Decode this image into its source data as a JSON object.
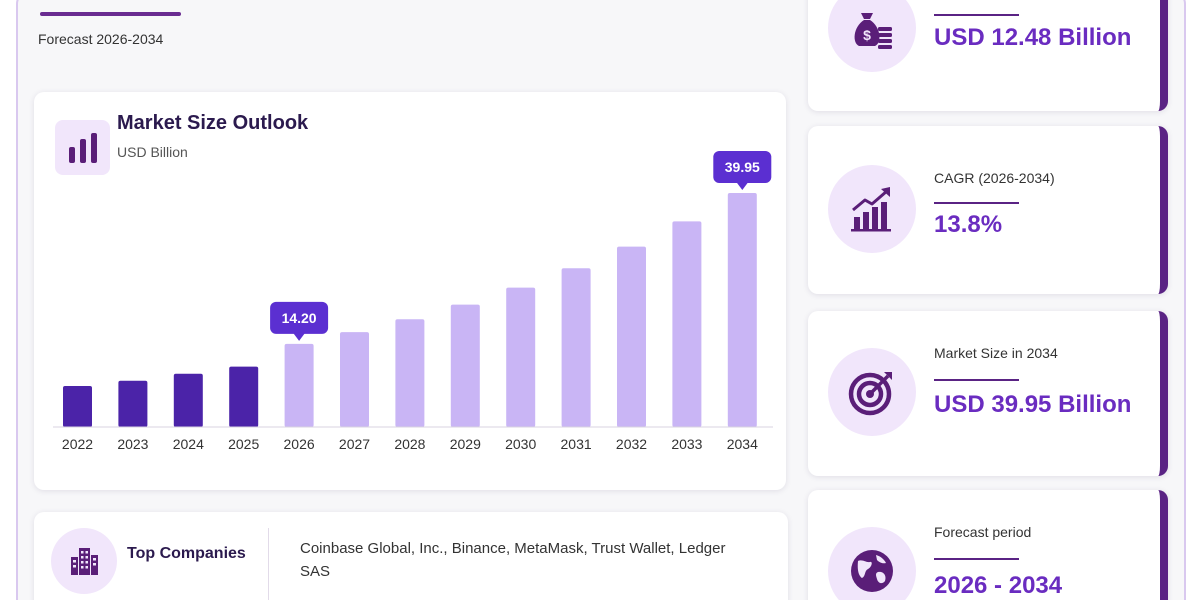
{
  "header": {
    "forecast_label": "Forecast 2026-2034"
  },
  "chart_card": {
    "title": "Market Size Outlook",
    "subtitle": "USD Billion"
  },
  "chart_data": {
    "type": "bar",
    "title": "Market Size Outlook",
    "ylabel": "USD Billion",
    "categories": [
      "2022",
      "2023",
      "2024",
      "2025",
      "2026",
      "2027",
      "2028",
      "2029",
      "2030",
      "2031",
      "2032",
      "2033",
      "2034"
    ],
    "values": [
      7.0,
      7.9,
      9.1,
      10.3,
      14.2,
      16.2,
      18.4,
      20.9,
      23.8,
      27.1,
      30.8,
      35.1,
      39.95
    ],
    "highlighted": [
      {
        "category": "2026",
        "label": "14.20"
      },
      {
        "category": "2034",
        "label": "39.95"
      }
    ],
    "ylim": [
      0,
      39.95
    ],
    "grid": false,
    "colors": {
      "historical": "#4b23a8",
      "forecast": "#c9b5f5",
      "callout": "#5b2fd1"
    }
  },
  "companies": {
    "label": "Top Companies",
    "text": "Coinbase Global, Inc., Binance, MetaMask, Trust Wallet, Ledger SAS"
  },
  "stats": [
    {
      "label": "",
      "value": "USD 12.48 Billion",
      "icon": "money-bag-icon"
    },
    {
      "label": "CAGR (2026-2034)",
      "value": "13.8%",
      "icon": "growth-chart-icon"
    },
    {
      "label": "Market Size in 2034",
      "value": "USD 39.95 Billion",
      "icon": "target-icon"
    },
    {
      "label": "Forecast period",
      "value": "2026 - 2034",
      "icon": "globe-icon"
    }
  ],
  "colors": {
    "accent": "#6a2c91",
    "value_text": "#6a2cc0",
    "icon_bg": "#f1e6fb"
  }
}
